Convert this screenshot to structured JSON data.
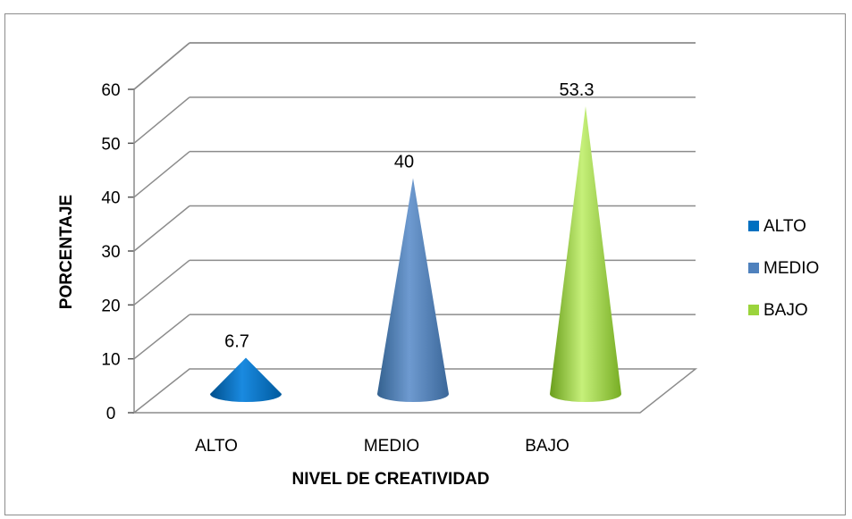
{
  "chart_data": {
    "type": "bar",
    "style": "3d-cone",
    "categories": [
      "ALTO",
      "MEDIO",
      "BAJO"
    ],
    "values": [
      6.7,
      40,
      53.3
    ],
    "data_labels": [
      "6.7",
      "40",
      "53.3"
    ],
    "colors": [
      "#0070c0",
      "#4f81bd",
      "#9bd43c"
    ],
    "legend": {
      "position": "right",
      "entries": [
        "ALTO",
        "MEDIO",
        "BAJO"
      ]
    },
    "xlabel": "NIVEL DE CREATIVIDAD",
    "ylabel": "PORCENTAJE",
    "ylim": [
      0,
      60
    ],
    "yticks": [
      "0",
      "10",
      "20",
      "30",
      "40",
      "50",
      "60"
    ],
    "grid": true
  }
}
